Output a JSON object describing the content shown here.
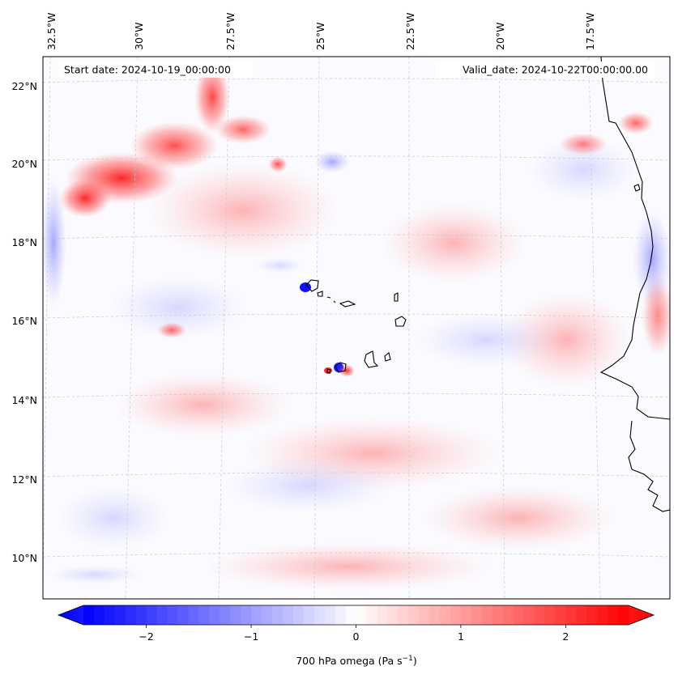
{
  "map": {
    "start_date": "Start date: 2024-10-19_00:00:00",
    "valid_date": "Valid_date: 2024-10-22T00:00:00.00",
    "lon_labels": [
      "32.5°W",
      "30°W",
      "27.5°W",
      "25°W",
      "22.5°W",
      "20°W",
      "17.5°W"
    ],
    "lat_labels": [
      "22°N",
      "20°N",
      "18°N",
      "16°N",
      "14°N",
      "12°N",
      "10°N"
    ],
    "field": "700 hPa omega",
    "region": "Eastern tropical Atlantic, Cape Verde islands and West African coast"
  },
  "colorbar": {
    "label_main": "700 hPa omega (Pa s",
    "label_exp": "−1",
    "label_close": ")",
    "ticks": [
      "−2",
      "−1",
      "0",
      "1",
      "2"
    ],
    "tick_values": [
      -2,
      -1,
      0,
      1,
      2
    ],
    "range": [
      -2.6,
      2.6
    ],
    "cmap": "bwr",
    "color_low": "#0000ff",
    "color_mid": "#ffffff",
    "color_high": "#ff0000"
  }
}
